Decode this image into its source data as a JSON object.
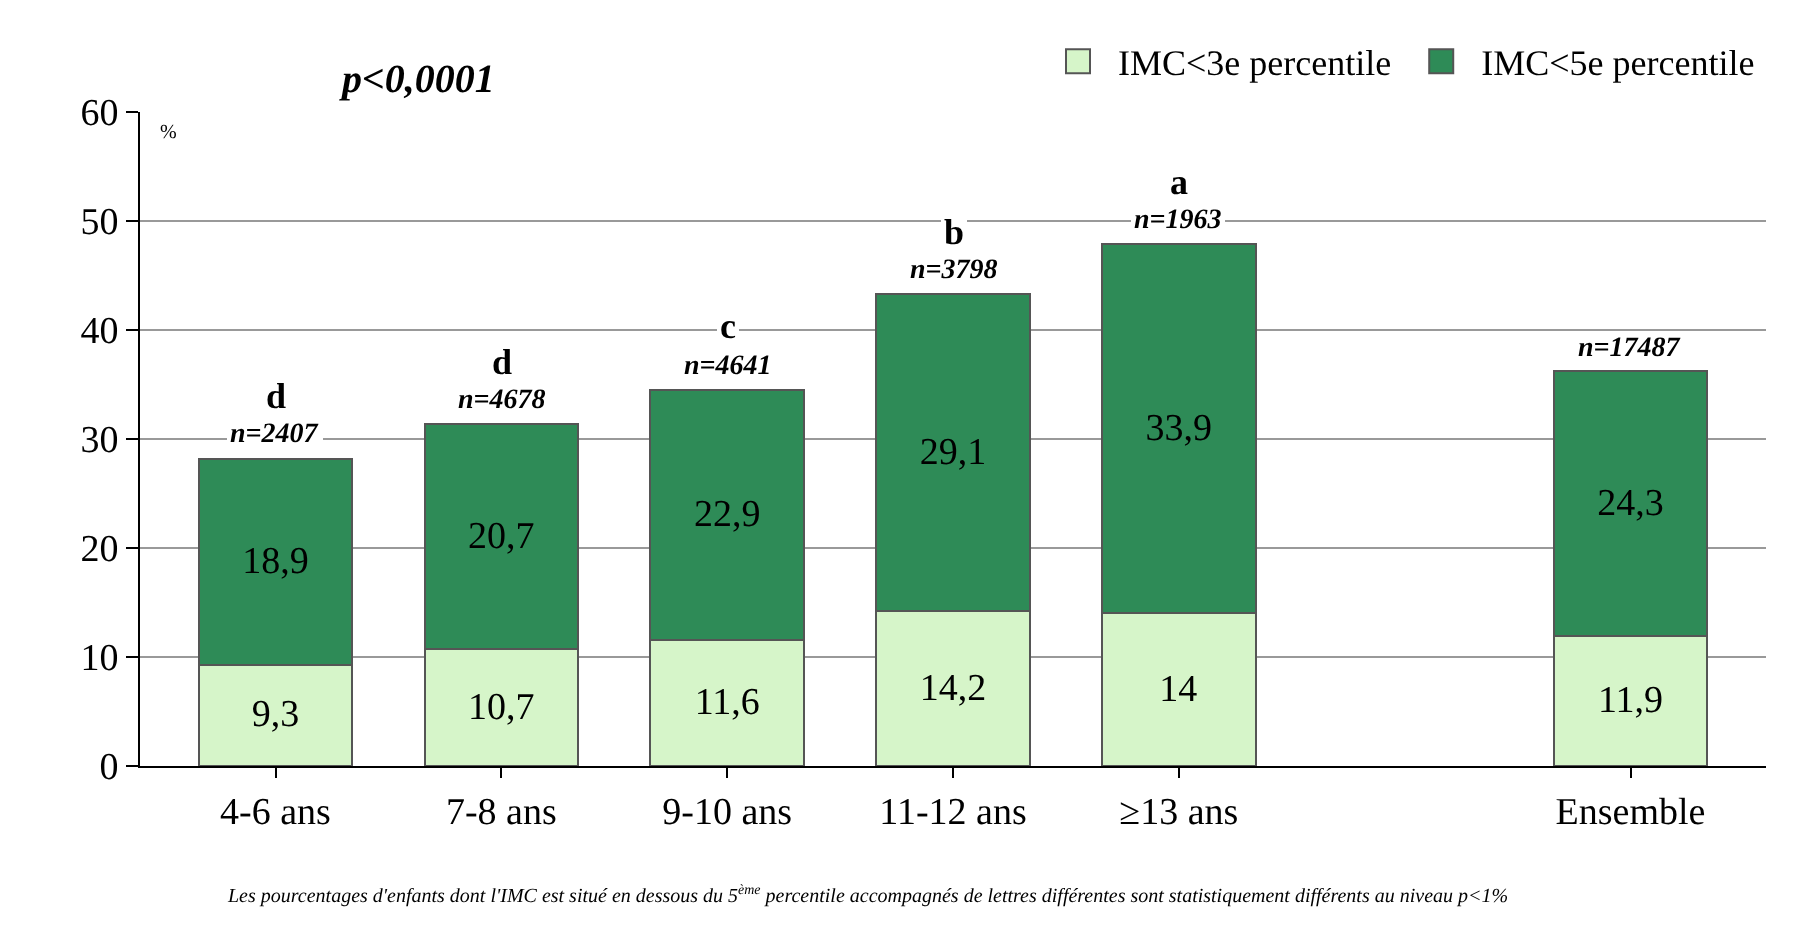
{
  "chart_data": {
    "type": "bar",
    "stacked": true,
    "categories": [
      "4-6 ans",
      "7-8 ans",
      "9-10 ans",
      "11-12 ans",
      "≥13 ans",
      null,
      "Ensemble"
    ],
    "series": [
      {
        "name": "IMC<3e percentile",
        "color": "#d6f5c9",
        "values": [
          9.3,
          10.7,
          11.6,
          14.2,
          14,
          null,
          11.9
        ],
        "value_labels": [
          "9,3",
          "10,7",
          "11,6",
          "14,2",
          "14",
          null,
          "11,9"
        ]
      },
      {
        "name": "IMC<5e percentile",
        "color": "#2e8b57",
        "values": [
          18.9,
          20.7,
          22.9,
          29.1,
          33.9,
          null,
          24.3
        ],
        "value_labels": [
          "18,9",
          "20,7",
          "22,9",
          "29,1",
          "33,9",
          null,
          "24,3"
        ]
      }
    ],
    "ylim": [
      0,
      60
    ],
    "yticks": [
      0,
      10,
      20,
      30,
      40,
      50,
      60
    ],
    "grid": "y",
    "legend": "top right",
    "annotations": [
      "p<0,0001",
      "%",
      "Les pourcentages d'enfants dont l'IMC est situé en dessous du 5$^{ème}$ percentile accompagnés de lettres différentes sont statistiquement différents au niveau p<1%",
      {
        "text": "d",
        "x": "4-6 ans",
        "y": 34
      },
      {
        "text": "n=2407",
        "x": "4-6 ans",
        "y": 28.2
      },
      {
        "text": "d",
        "x": "7-8 ans",
        "y": 37
      },
      {
        "text": "n=4678",
        "x": "7-8 ans",
        "y": 31.4
      },
      {
        "text": "c",
        "x": "9-10 ans",
        "y": 40.3
      },
      {
        "text": "n=4641",
        "x": "9-10 ans",
        "y": 34.5
      },
      {
        "text": "b",
        "x": "11-12 ans",
        "y": 49
      },
      {
        "text": "n=3798",
        "x": "11-12 ans",
        "y": 43.3
      },
      {
        "text": "a",
        "x": "≥13 ans",
        "y": 53.5
      },
      {
        "text": "n=1963",
        "x": "≥13 ans",
        "y": 47.9
      },
      {
        "text": "n=17487",
        "x": "Ensemble",
        "y": 36.2
      }
    ]
  }
}
